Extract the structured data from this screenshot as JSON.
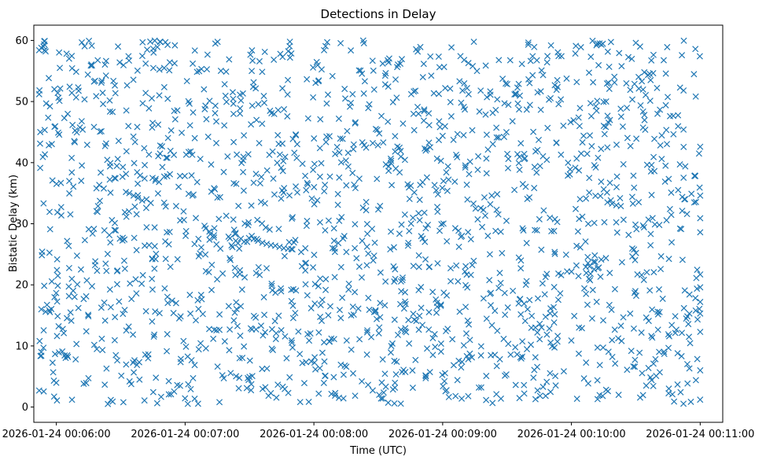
{
  "chart_data": {
    "type": "scatter",
    "title": "Detections in Delay",
    "xlabel": "Time (UTC)",
    "ylabel": "Bistatic Delay (km)",
    "marker": "x",
    "color": "#1f77b4",
    "x_unit": "seconds since 2026-01-24 00:06:00",
    "xlim": [
      -10.5,
      310.5
    ],
    "ylim": [
      -2.5,
      62.5
    ],
    "x_ticks": [
      {
        "value": 0,
        "label": "2026-01-24 00:06:00"
      },
      {
        "value": 60,
        "label": "2026-01-24 00:07:00"
      },
      {
        "value": 120,
        "label": "2026-01-24 00:08:00"
      },
      {
        "value": 180,
        "label": "2026-01-24 00:09:00"
      },
      {
        "value": 240,
        "label": "2026-01-24 00:10:00"
      },
      {
        "value": 300,
        "label": "2026-01-24 00:11:00"
      }
    ],
    "y_ticks": [
      {
        "value": 0,
        "label": "0"
      },
      {
        "value": 10,
        "label": "10"
      },
      {
        "value": 20,
        "label": "20"
      },
      {
        "value": 30,
        "label": "30"
      },
      {
        "value": 40,
        "label": "40"
      },
      {
        "value": 50,
        "label": "50"
      },
      {
        "value": 60,
        "label": "60"
      }
    ],
    "point_cloud": {
      "count": 1800,
      "x_range": [
        -8,
        300
      ],
      "y_range": [
        0.5,
        60
      ],
      "distribution": "approximately uniform noise",
      "seed": 7
    },
    "series": [
      {
        "name": "detections",
        "points": [
          [
            -8,
            58.4
          ],
          [
            -7,
            58.8
          ],
          [
            -6,
            59.0
          ],
          [
            -5,
            58.2
          ],
          [
            -7.5,
            45.0
          ],
          [
            -8,
            51.2
          ],
          [
            -8,
            2.7
          ],
          [
            -7,
            8.4
          ],
          [
            -6,
            9.7
          ],
          [
            -7,
            16.0
          ],
          [
            -5,
            15.6
          ],
          [
            92,
            27.5
          ],
          [
            94,
            27.2
          ],
          [
            96,
            26.9
          ],
          [
            98,
            26.7
          ],
          [
            100,
            26.5
          ],
          [
            102,
            26.4
          ],
          [
            104,
            26.2
          ],
          [
            106,
            26.0
          ],
          [
            108,
            25.9
          ],
          [
            110,
            25.8
          ],
          [
            34,
            35.0
          ],
          [
            36,
            34.6
          ],
          [
            38,
            34.2
          ],
          [
            40,
            33.8
          ],
          [
            42,
            34.0
          ],
          [
            44,
            33.4
          ],
          [
            190,
            56.8
          ],
          [
            192,
            56.3
          ],
          [
            194,
            55.8
          ],
          [
            196,
            55.0
          ],
          [
            252,
            59.5
          ],
          [
            254,
            59.3
          ],
          [
            270,
            59.6
          ],
          [
            272,
            59.0
          ],
          [
            300,
            42.6
          ],
          [
            300,
            34.6
          ],
          [
            300,
            30.9
          ],
          [
            300,
            28.6
          ],
          [
            300,
            21.7
          ],
          [
            300,
            19.6
          ],
          [
            300,
            17.2
          ],
          [
            300,
            15.3
          ],
          [
            300,
            12.3
          ],
          [
            300,
            6.0
          ],
          [
            298,
            4.4
          ],
          [
            262,
            2.0
          ],
          [
            257,
            2.6
          ],
          [
            186,
            1.8
          ],
          [
            76,
            0.8
          ],
          [
            24,
            0.5
          ]
        ]
      }
    ]
  }
}
